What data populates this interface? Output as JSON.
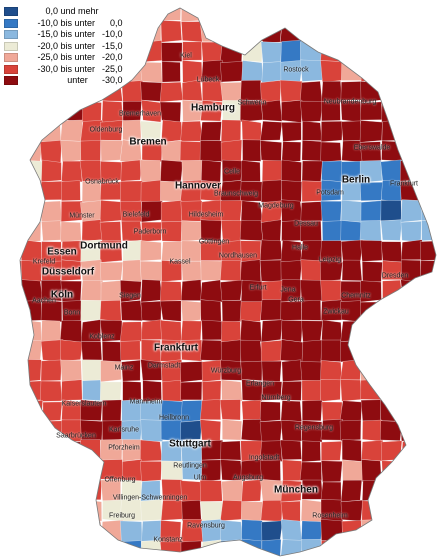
{
  "legend": [
    {
      "a": "0,0",
      "b": "und mehr",
      "c": "",
      "color": "#1f4e8c"
    },
    {
      "a": "-10,0",
      "b": "bis unter",
      "c": "0,0",
      "color": "#3579c4"
    },
    {
      "a": "-15,0",
      "b": "bis unter",
      "c": "-10,0",
      "color": "#8bb8df"
    },
    {
      "a": "-20,0",
      "b": "bis unter",
      "c": "-15,0",
      "color": "#ecebd6"
    },
    {
      "a": "-25,0",
      "b": "bis unter",
      "c": "-20,0",
      "color": "#f0a898"
    },
    {
      "a": "-30,0",
      "b": "bis unter",
      "c": "-25,0",
      "color": "#d9433a"
    },
    {
      "a": "",
      "b": "unter",
      "c": "-30,0",
      "color": "#8e0c10"
    }
  ],
  "cities": {
    "kiel": "Kiel",
    "rostock": "Rostock",
    "luebeck": "Lübeck",
    "hamburg": "Hamburg",
    "bremerhaven": "Bremerhaven",
    "oldenburg": "Oldenburg",
    "bremen": "Bremen",
    "schwerin": "Schwerin",
    "neubrandenburg": "Neubrandenburg",
    "eberswalde": "Eberswalde",
    "berlin": "Berlin",
    "potsdam": "Potsdam",
    "frankfurt_oder": "Frankfurt",
    "hannover": "Hannover",
    "braunschweig": "Braunschweig",
    "celle": "Celle",
    "osnabrueck": "Osnabrück",
    "muenster": "Münster",
    "bielefeld": "Bielefeld",
    "hildesheim": "Hildesheim",
    "magdeburg": "Magdeburg",
    "dessau": "Dessau",
    "halle": "Halle",
    "leipzig": "Leipzig",
    "dresden": "Dresden",
    "goettingen": "Göttingen",
    "paderborn": "Paderborn",
    "nordhausen": "Nordhausen",
    "essen": "Essen",
    "dortmund": "Dortmund",
    "krefeld": "Krefeld",
    "duesseldorf": "Düsseldorf",
    "koeln": "Köln",
    "aachen": "Aachen",
    "bonn": "Bonn",
    "siegen": "Siegen",
    "kassel": "Kassel",
    "erfurt": "Erfurt",
    "jena": "Jena",
    "gera": "Gera",
    "chemnitz": "Chemnitz",
    "zwickau": "Zwickau",
    "koblenz": "Koblenz",
    "frankfurt": "Frankfurt",
    "mainz": "Mainz",
    "darmstadt": "Darmstadt",
    "wuerzburg": "Würzburg",
    "erlangen": "Erlangen",
    "nuernberg": "Nürnberg",
    "mannheim": "Mannheim",
    "heilbronn": "Heilbronn",
    "kaiserslautern": "Kaiserslautern",
    "saarbruecken": "Saarbrücken",
    "karlsruhe": "Karlsruhe",
    "pforzheim": "Pforzheim",
    "stuttgart": "Stuttgart",
    "reutlingen": "Reutlingen",
    "ulm": "Ulm",
    "regensburg": "Regensburg",
    "ingolstadt": "Ingolstadt",
    "augsburg": "Augsburg",
    "muenchen": "München",
    "freiburg": "Freiburg",
    "offenburg": "Offenburg",
    "villingen": "Villingen-Schwenningen",
    "konstanz": "Konstanz",
    "ravensburg": "Ravensburg",
    "rosenheim": "Rosenheim"
  }
}
